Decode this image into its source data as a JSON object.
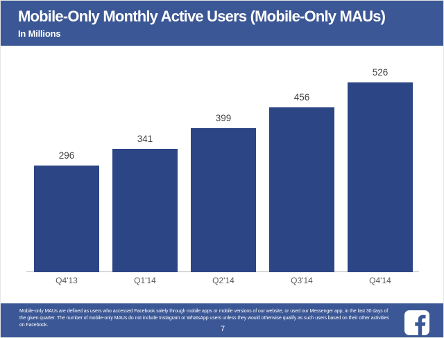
{
  "header": {
    "title": "Mobile-Only Monthly Active Users (Mobile-Only MAUs)",
    "subtitle": "In Millions"
  },
  "chart_data": {
    "type": "bar",
    "title": "Mobile-Only Monthly Active Users (Mobile-Only MAUs)",
    "unit_label": "In Millions",
    "categories": [
      "Q4'13",
      "Q1'14",
      "Q2'14",
      "Q3'14",
      "Q4'14"
    ],
    "values": [
      296,
      341,
      399,
      456,
      526
    ],
    "xlabel": "",
    "ylabel": "In Millions",
    "ylim": [
      0,
      560
    ],
    "grid": false,
    "legend": false,
    "data_labels": true,
    "bar_color": "#2c4585"
  },
  "footer": {
    "footnote": "Mobile-only MAUs are defined as users who accessed Facebook solely through mobile apps or mobile versions of our website, or used our Messenger app, in the last 30 days of the given quarter. The number of mobile-only MAUs do not include Instagram or WhatsApp users unless they would otherwise qualify as such users based on their other activities on Facebook.",
    "page_number": "7",
    "logo": "facebook-logo"
  },
  "colors": {
    "banner_blue": "#3b5795",
    "bar_blue": "#2c4585",
    "value_label": "#414141",
    "axis_label": "#58595b",
    "axis_line": "#d9d9d9",
    "logo_background": "#ffffff"
  }
}
